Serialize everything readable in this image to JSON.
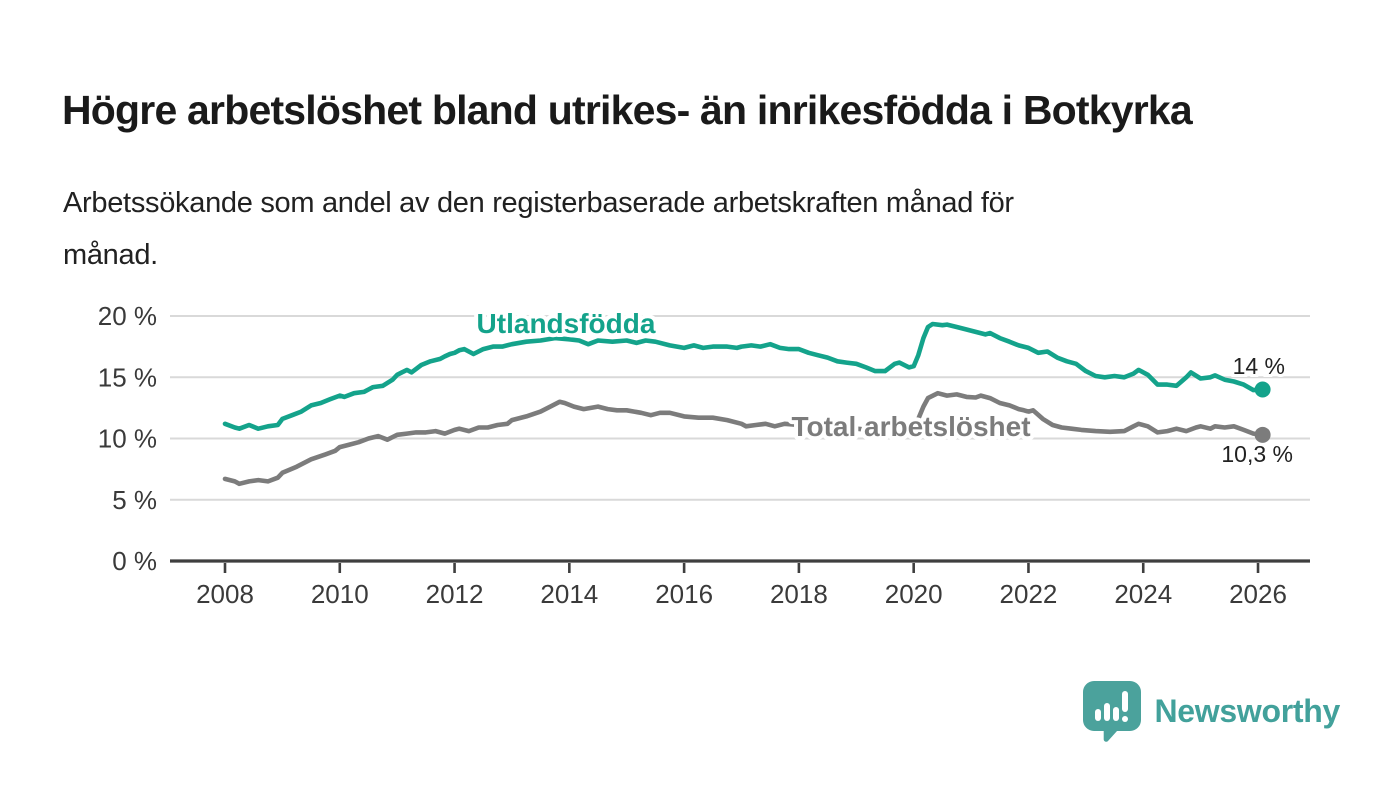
{
  "header": {
    "title": "Högre arbetslöshet bland utrikes- än inrikesfödda i Botkyrka",
    "subtitle_line1": "Arbetssökande som andel av den registerbaserade arbetskraften månad för",
    "subtitle_line2": "månad."
  },
  "logo": {
    "text": "Newsworthy",
    "color": "#42a19b",
    "icon": "speech-bubble-bar-chart"
  },
  "colors": {
    "accent_teal": "#14a38b",
    "series_gray": "#7c7c7c",
    "gridline": "#d9d9d9",
    "axis": "#3f3f3f",
    "tick_text": "#3a3a3a",
    "annotation_text": "#222222"
  },
  "chart_data": {
    "type": "line",
    "title": "Högre arbetslöshet bland utrikes- än inrikesfödda i Botkyrka",
    "subtitle": "Arbetssökande som andel av den registerbaserade arbetskraften månad för månad.",
    "xlabel": "",
    "ylabel": "",
    "grid": "horizontal",
    "legend": "inline-labels",
    "x_range": [
      2008,
      2026.1
    ],
    "ylim": [
      0,
      20
    ],
    "x_ticks": [
      2008,
      2010,
      2012,
      2014,
      2016,
      2018,
      2020,
      2022,
      2024,
      2026
    ],
    "y_ticks": [
      0,
      5,
      10,
      15,
      20
    ],
    "y_tick_suffix": " %",
    "series": [
      {
        "name": "Utlandsfödda",
        "color": "#14a38b",
        "end_label": "14 %",
        "end_value": 14.0,
        "points": [
          [
            2008.0,
            11.2
          ],
          [
            2008.17,
            10.9
          ],
          [
            2008.25,
            10.8
          ],
          [
            2008.42,
            11.1
          ],
          [
            2008.58,
            10.8
          ],
          [
            2008.75,
            11.0
          ],
          [
            2008.92,
            11.1
          ],
          [
            2009.0,
            11.6
          ],
          [
            2009.17,
            11.9
          ],
          [
            2009.33,
            12.2
          ],
          [
            2009.5,
            12.7
          ],
          [
            2009.67,
            12.9
          ],
          [
            2009.83,
            13.2
          ],
          [
            2010.0,
            13.5
          ],
          [
            2010.08,
            13.4
          ],
          [
            2010.25,
            13.7
          ],
          [
            2010.42,
            13.8
          ],
          [
            2010.5,
            14.0
          ],
          [
            2010.58,
            14.2
          ],
          [
            2010.75,
            14.3
          ],
          [
            2010.92,
            14.8
          ],
          [
            2011.0,
            15.2
          ],
          [
            2011.08,
            15.4
          ],
          [
            2011.17,
            15.6
          ],
          [
            2011.25,
            15.4
          ],
          [
            2011.42,
            16.0
          ],
          [
            2011.58,
            16.3
          ],
          [
            2011.75,
            16.5
          ],
          [
            2011.83,
            16.7
          ],
          [
            2011.92,
            16.9
          ],
          [
            2012.0,
            17.0
          ],
          [
            2012.08,
            17.2
          ],
          [
            2012.17,
            17.3
          ],
          [
            2012.33,
            16.9
          ],
          [
            2012.5,
            17.3
          ],
          [
            2012.67,
            17.5
          ],
          [
            2012.83,
            17.5
          ],
          [
            2013.0,
            17.7
          ],
          [
            2013.25,
            17.9
          ],
          [
            2013.5,
            18.0
          ],
          [
            2013.75,
            18.2
          ],
          [
            2014.0,
            18.1
          ],
          [
            2014.17,
            18.0
          ],
          [
            2014.33,
            17.7
          ],
          [
            2014.5,
            18.0
          ],
          [
            2014.75,
            17.9
          ],
          [
            2015.0,
            18.0
          ],
          [
            2015.17,
            17.8
          ],
          [
            2015.33,
            18.0
          ],
          [
            2015.5,
            17.9
          ],
          [
            2015.75,
            17.6
          ],
          [
            2016.0,
            17.4
          ],
          [
            2016.17,
            17.6
          ],
          [
            2016.33,
            17.4
          ],
          [
            2016.5,
            17.5
          ],
          [
            2016.75,
            17.5
          ],
          [
            2016.92,
            17.4
          ],
          [
            2017.0,
            17.5
          ],
          [
            2017.17,
            17.6
          ],
          [
            2017.33,
            17.5
          ],
          [
            2017.5,
            17.7
          ],
          [
            2017.67,
            17.4
          ],
          [
            2017.83,
            17.3
          ],
          [
            2018.0,
            17.3
          ],
          [
            2018.17,
            17.0
          ],
          [
            2018.33,
            16.8
          ],
          [
            2018.5,
            16.6
          ],
          [
            2018.67,
            16.3
          ],
          [
            2018.83,
            16.2
          ],
          [
            2019.0,
            16.1
          ],
          [
            2019.17,
            15.8
          ],
          [
            2019.33,
            15.5
          ],
          [
            2019.5,
            15.5
          ],
          [
            2019.67,
            16.1
          ],
          [
            2019.75,
            16.2
          ],
          [
            2019.92,
            15.8
          ],
          [
            2020.0,
            15.9
          ],
          [
            2020.08,
            16.8
          ],
          [
            2020.17,
            18.2
          ],
          [
            2020.25,
            19.1
          ],
          [
            2020.33,
            19.35
          ],
          [
            2020.5,
            19.25
          ],
          [
            2020.58,
            19.3
          ],
          [
            2020.75,
            19.1
          ],
          [
            2020.92,
            18.9
          ],
          [
            2021.08,
            18.7
          ],
          [
            2021.25,
            18.5
          ],
          [
            2021.33,
            18.6
          ],
          [
            2021.5,
            18.2
          ],
          [
            2021.67,
            17.9
          ],
          [
            2021.83,
            17.6
          ],
          [
            2022.0,
            17.4
          ],
          [
            2022.17,
            17.0
          ],
          [
            2022.33,
            17.1
          ],
          [
            2022.5,
            16.6
          ],
          [
            2022.67,
            16.3
          ],
          [
            2022.83,
            16.1
          ],
          [
            2023.0,
            15.5
          ],
          [
            2023.17,
            15.1
          ],
          [
            2023.33,
            15.0
          ],
          [
            2023.5,
            15.1
          ],
          [
            2023.67,
            15.0
          ],
          [
            2023.83,
            15.3
          ],
          [
            2023.92,
            15.6
          ],
          [
            2024.08,
            15.2
          ],
          [
            2024.25,
            14.4
          ],
          [
            2024.42,
            14.4
          ],
          [
            2024.58,
            14.3
          ],
          [
            2024.75,
            15.0
          ],
          [
            2024.83,
            15.4
          ],
          [
            2025.0,
            14.9
          ],
          [
            2025.17,
            15.0
          ],
          [
            2025.25,
            15.15
          ],
          [
            2025.42,
            14.8
          ],
          [
            2025.58,
            14.65
          ],
          [
            2025.75,
            14.4
          ],
          [
            2025.92,
            13.95
          ],
          [
            2026.08,
            14.0
          ]
        ]
      },
      {
        "name": "Total arbetslöshet",
        "color": "#7c7c7c",
        "end_label": "10,3 %",
        "end_value": 10.3,
        "points": [
          [
            2008.0,
            6.7
          ],
          [
            2008.17,
            6.5
          ],
          [
            2008.25,
            6.3
          ],
          [
            2008.42,
            6.5
          ],
          [
            2008.58,
            6.6
          ],
          [
            2008.75,
            6.5
          ],
          [
            2008.92,
            6.8
          ],
          [
            2009.0,
            7.2
          ],
          [
            2009.25,
            7.7
          ],
          [
            2009.5,
            8.3
          ],
          [
            2009.75,
            8.7
          ],
          [
            2009.92,
            9.0
          ],
          [
            2010.0,
            9.3
          ],
          [
            2010.17,
            9.5
          ],
          [
            2010.33,
            9.7
          ],
          [
            2010.5,
            10.0
          ],
          [
            2010.67,
            10.2
          ],
          [
            2010.83,
            9.9
          ],
          [
            2011.0,
            10.3
          ],
          [
            2011.17,
            10.4
          ],
          [
            2011.33,
            10.5
          ],
          [
            2011.5,
            10.5
          ],
          [
            2011.67,
            10.6
          ],
          [
            2011.83,
            10.4
          ],
          [
            2012.0,
            10.7
          ],
          [
            2012.08,
            10.8
          ],
          [
            2012.25,
            10.6
          ],
          [
            2012.42,
            10.9
          ],
          [
            2012.58,
            10.9
          ],
          [
            2012.75,
            11.1
          ],
          [
            2012.92,
            11.2
          ],
          [
            2013.0,
            11.5
          ],
          [
            2013.25,
            11.8
          ],
          [
            2013.5,
            12.2
          ],
          [
            2013.67,
            12.6
          ],
          [
            2013.83,
            13.0
          ],
          [
            2013.92,
            12.9
          ],
          [
            2014.08,
            12.6
          ],
          [
            2014.25,
            12.4
          ],
          [
            2014.5,
            12.6
          ],
          [
            2014.67,
            12.4
          ],
          [
            2014.83,
            12.3
          ],
          [
            2015.0,
            12.3
          ],
          [
            2015.25,
            12.1
          ],
          [
            2015.42,
            11.9
          ],
          [
            2015.58,
            12.1
          ],
          [
            2015.75,
            12.1
          ],
          [
            2016.0,
            11.8
          ],
          [
            2016.25,
            11.7
          ],
          [
            2016.5,
            11.7
          ],
          [
            2016.75,
            11.5
          ],
          [
            2017.0,
            11.2
          ],
          [
            2017.08,
            11.0
          ],
          [
            2017.25,
            11.1
          ],
          [
            2017.42,
            11.2
          ],
          [
            2017.58,
            11.0
          ],
          [
            2017.75,
            11.2
          ],
          [
            2018.0,
            11.1
          ],
          [
            2018.25,
            11.0
          ],
          [
            2018.5,
            10.9
          ],
          [
            2018.75,
            10.9
          ],
          [
            2019.0,
            10.8
          ],
          [
            2019.25,
            10.7
          ],
          [
            2019.5,
            10.7
          ],
          [
            2019.75,
            10.9
          ],
          [
            2020.0,
            11.1
          ],
          [
            2020.08,
            11.6
          ],
          [
            2020.17,
            12.6
          ],
          [
            2020.25,
            13.3
          ],
          [
            2020.42,
            13.7
          ],
          [
            2020.58,
            13.5
          ],
          [
            2020.75,
            13.6
          ],
          [
            2020.92,
            13.4
          ],
          [
            2021.08,
            13.35
          ],
          [
            2021.17,
            13.5
          ],
          [
            2021.33,
            13.3
          ],
          [
            2021.5,
            12.9
          ],
          [
            2021.67,
            12.7
          ],
          [
            2021.83,
            12.4
          ],
          [
            2021.92,
            12.3
          ],
          [
            2022.0,
            12.2
          ],
          [
            2022.08,
            12.3
          ],
          [
            2022.25,
            11.6
          ],
          [
            2022.42,
            11.1
          ],
          [
            2022.58,
            10.9
          ],
          [
            2022.75,
            10.8
          ],
          [
            2022.92,
            10.7
          ],
          [
            2023.17,
            10.6
          ],
          [
            2023.42,
            10.55
          ],
          [
            2023.67,
            10.6
          ],
          [
            2023.83,
            11.0
          ],
          [
            2023.92,
            11.2
          ],
          [
            2024.08,
            11.0
          ],
          [
            2024.25,
            10.5
          ],
          [
            2024.42,
            10.6
          ],
          [
            2024.58,
            10.8
          ],
          [
            2024.75,
            10.6
          ],
          [
            2024.92,
            10.9
          ],
          [
            2025.0,
            11.0
          ],
          [
            2025.17,
            10.8
          ],
          [
            2025.25,
            11.0
          ],
          [
            2025.42,
            10.9
          ],
          [
            2025.58,
            11.0
          ],
          [
            2025.75,
            10.7
          ],
          [
            2025.92,
            10.4
          ],
          [
            2026.08,
            10.3
          ]
        ]
      }
    ]
  }
}
